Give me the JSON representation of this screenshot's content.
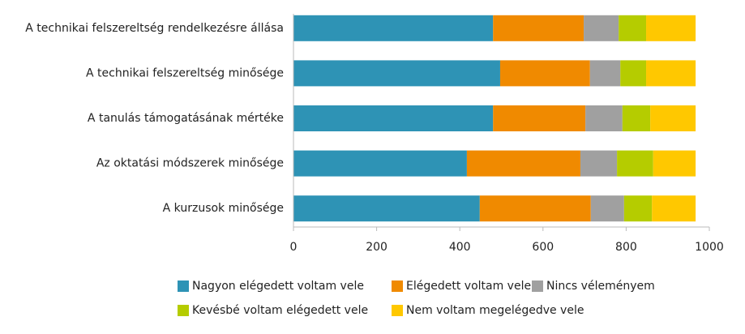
{
  "chart_data": {
    "type": "stacked_barh",
    "categories": [
      "A technikai felszereltség rendelkezésre állása",
      "A technikai felszereltség minősége",
      "A tanulás támogatásának mértéke",
      "Az oktatási módszerek minősége",
      "A kurzusok minősége"
    ],
    "series": [
      {
        "name": "Nagyon elégedett voltam vele",
        "color": "#2e93b5",
        "values": [
          480,
          497,
          480,
          417,
          448
        ]
      },
      {
        "name": "Elégedett voltam vele",
        "color": "#f08a00",
        "values": [
          218,
          216,
          222,
          273,
          267
        ]
      },
      {
        "name": "Nincs véleményem",
        "color": "#a0a0a0",
        "values": [
          84,
          73,
          89,
          88,
          80
        ]
      },
      {
        "name": "Kevésbé voltam elégedett vele",
        "color": "#b5cc00",
        "values": [
          66,
          62,
          67,
          87,
          67
        ]
      },
      {
        "name": "Nem voltam megelégedve vele",
        "color": "#ffc800",
        "values": [
          119,
          119,
          109,
          102,
          105
        ]
      }
    ],
    "xlim": [
      0,
      1000
    ],
    "xticks": [
      0,
      200,
      400,
      600,
      800,
      1000
    ],
    "grid": false
  }
}
